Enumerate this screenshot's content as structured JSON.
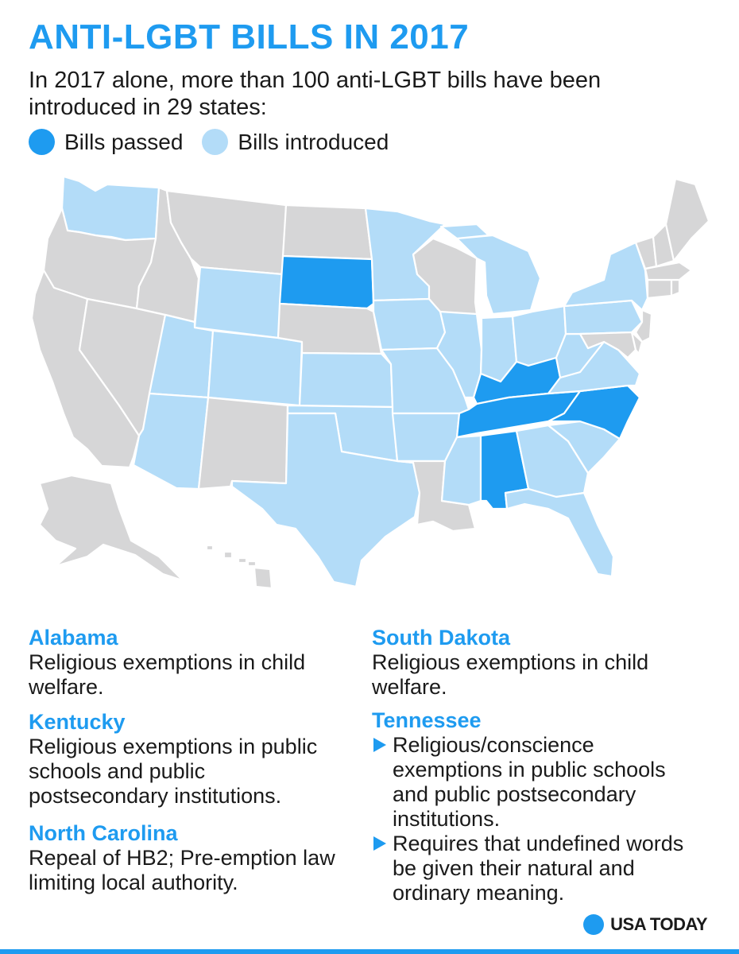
{
  "header": {
    "title": "ANTI-LGBT BILLS IN 2017",
    "subtitle": "In 2017 alone, more than 100 anti-LGBT bills have been introduced in 29 states:"
  },
  "legend": {
    "passed_label": "Bills passed",
    "introduced_label": "Bills introduced"
  },
  "colors": {
    "passed": "#1e9bf0",
    "introduced": "#b3dcf8",
    "none": "#d6d6d7"
  },
  "map": {
    "states_passed": [
      "SD",
      "KY",
      "TN",
      "NC",
      "AL"
    ],
    "states_introduced": [
      "WA",
      "WY",
      "UT",
      "CO",
      "AZ",
      "KS",
      "OK",
      "TX",
      "MN",
      "IA",
      "MO",
      "AR",
      "IL",
      "IN",
      "OH",
      "MI",
      "PA",
      "NY",
      "WV",
      "VA",
      "SC",
      "GA",
      "FL",
      "MS"
    ]
  },
  "notes": {
    "alabama": {
      "state": "Alabama",
      "text": "Religious exemptions in child welfare."
    },
    "kentucky": {
      "state": "Kentucky",
      "text": "Religious exemptions in public schools and public postsecondary institutions."
    },
    "north_carolina": {
      "state": "North Carolina",
      "text": "Repeal of HB2; Pre-emption law limiting local authority."
    },
    "south_dakota": {
      "state": "South Dakota",
      "text": "Religious exemptions in child welfare."
    },
    "tennessee": {
      "state": "Tennessee",
      "bullets": [
        "Religious/conscience exemptions in public schools and public postsecondary institutions.",
        "Requires that undefined words be given their natural and ordinary meaning."
      ]
    }
  },
  "footer": {
    "logo_text": "USA TODAY"
  }
}
